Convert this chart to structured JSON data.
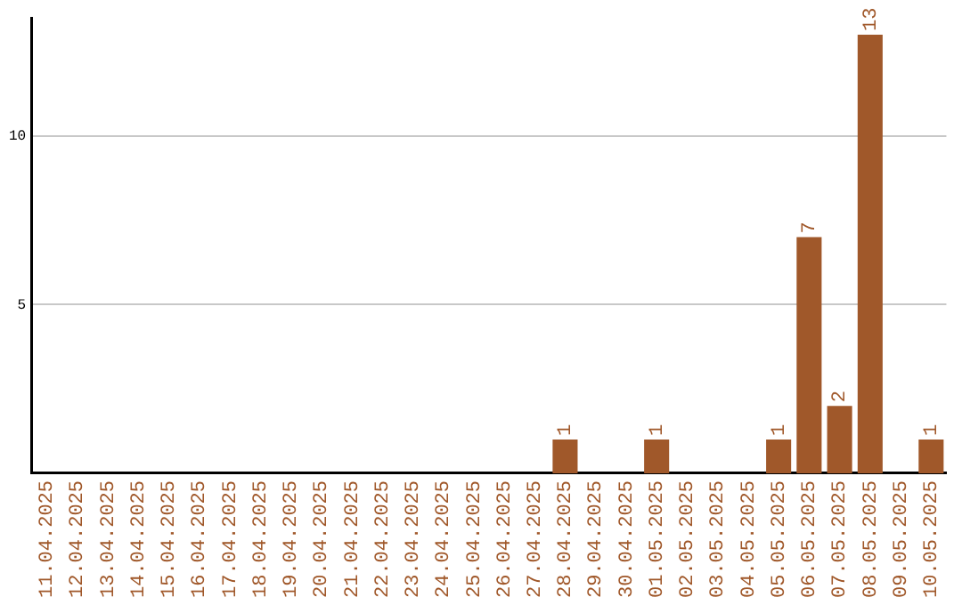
{
  "chart_data": {
    "type": "bar",
    "categories": [
      "11.04.2025",
      "12.04.2025",
      "13.04.2025",
      "14.04.2025",
      "15.04.2025",
      "16.04.2025",
      "17.04.2025",
      "18.04.2025",
      "19.04.2025",
      "20.04.2025",
      "21.04.2025",
      "22.04.2025",
      "23.04.2025",
      "24.04.2025",
      "25.04.2025",
      "26.04.2025",
      "27.04.2025",
      "28.04.2025",
      "29.04.2025",
      "30.04.2025",
      "01.05.2025",
      "02.05.2025",
      "03.05.2025",
      "04.05.2025",
      "05.05.2025",
      "06.05.2025",
      "07.05.2025",
      "08.05.2025",
      "09.05.2025",
      "10.05.2025"
    ],
    "values": [
      0,
      0,
      0,
      0,
      0,
      0,
      0,
      0,
      0,
      0,
      0,
      0,
      0,
      0,
      0,
      0,
      0,
      1,
      0,
      0,
      1,
      0,
      0,
      0,
      1,
      7,
      2,
      13,
      0,
      1
    ],
    "value_labels": [
      null,
      null,
      null,
      null,
      null,
      null,
      null,
      null,
      null,
      null,
      null,
      null,
      null,
      null,
      null,
      null,
      null,
      "1",
      null,
      null,
      "1",
      null,
      null,
      null,
      "1",
      "7",
      "2",
      "13",
      null,
      "1"
    ],
    "color": "#a0582a",
    "ylim": [
      0,
      13.5
    ],
    "yticks": [
      5,
      10
    ],
    "grid": "y",
    "legend": false
  }
}
